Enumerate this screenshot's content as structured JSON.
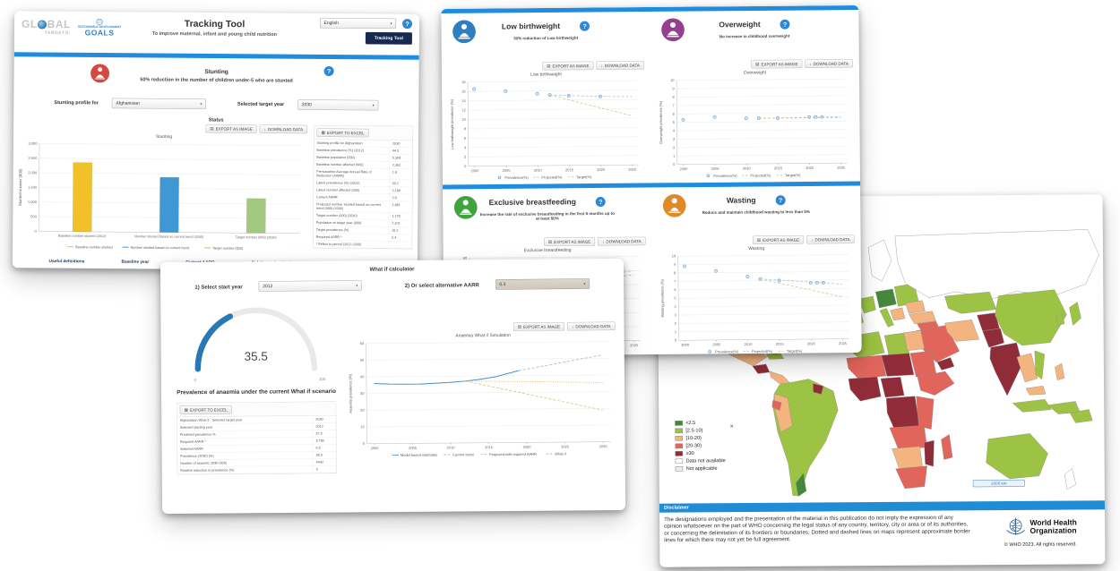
{
  "icons": {
    "help": "?",
    "image": "▤",
    "download": "↓",
    "excel": "▦",
    "caret": "▾"
  },
  "tracking_tool": {
    "logo": {
      "global_left": "GL",
      "global_right": "BAL",
      "targets": "TARGETS:",
      "sdg_line1": "SUSTAINABLE DEVELOPMENT",
      "sdg_goals": "GOALS"
    },
    "title": "Tracking Tool",
    "subtitle": "To improve maternal, infant and young child nutrition",
    "language_select": "English",
    "nav_button": "Tracking Tool",
    "section_title": "Stunting",
    "section_subtitle": "50% reduction in the number of children under-5 who are stunted",
    "profile_label": "Stunting profile for",
    "profile_value": "Afghanistan",
    "target_year_label": "Selected target year",
    "target_year_value": "2030",
    "status_label": "Status",
    "export_image_btn": "EXPORT AS IMAGE",
    "download_data_btn": "DOWNLOAD DATA",
    "export_excel_btn": "EXPORT TO EXCEL",
    "table_rows": [
      {
        "label": "Stunting profile for Afghanistan",
        "value": "2030"
      },
      {
        "label": "Baseline prevalence (%) (2012)",
        "value": "44.0"
      },
      {
        "label": "Baseline population (000)",
        "value": "5,309"
      },
      {
        "label": "Baseline number affected (000)",
        "value": "2,362"
      },
      {
        "label": "Pre-baseline Average Annual Rate of Reduction (AARR)",
        "value": "1.8"
      },
      {
        "label": "Latest prevalence (%) (2022)",
        "value": "33.1"
      },
      {
        "label": "Latest number affected (000)",
        "value": "2,188"
      },
      {
        "label": "Current AARR",
        "value": "2.9"
      },
      {
        "label": "Projected number stunted based on current trend (000) (2030)",
        "value": "1,881"
      },
      {
        "label": "Target number (000) (2030)",
        "value": "1,178"
      },
      {
        "label": "Population at target year (000)",
        "value": "7,201"
      },
      {
        "label": "Target prevalence (%)",
        "value": "16.2"
      },
      {
        "label": "Required AARR *",
        "value": "5.4"
      },
      {
        "label": "* Refers to period (2012-2030)",
        "value": ""
      }
    ],
    "footer_links": [
      "Useful definitions",
      "Baseline year",
      "Current AARR",
      "Relative reduction in numbers",
      "Required AARR"
    ]
  },
  "indicators": {
    "export_image_btn": "EXPORT AS IMAGE",
    "download_data_btn": "DOWNLOAD DATA",
    "low_birthweight": {
      "title": "Low birthweight",
      "subtitle": "30% reduction of Low birthweight"
    },
    "overweight": {
      "title": "Overweight",
      "subtitle": "No increase in childhood overweight"
    },
    "exclusive_breastfeeding": {
      "title": "Exclusive breastfeeding",
      "subtitle": "Increase the rate of exclusive breastfeeding in the first 6 months up to at least 50%"
    },
    "wasting": {
      "title": "Wasting",
      "subtitle": "Reduce and maintain childhood wasting to less than 5%"
    }
  },
  "whatif": {
    "title": "What if calculator",
    "start_year_label": "1) Select start year",
    "start_year_value": "2012",
    "aarr_label": "2) Or select alternative AARR",
    "aarr_value": "0.3",
    "gauge_value": "35.5",
    "gauge_min": "0",
    "gauge_max": "100",
    "gauge_caption": "Prevalence of anaemia under the current What if scenario",
    "export_excel_btn": "EXPORT TO EXCEL",
    "export_image_btn": "EXPORT AS IMAGE",
    "download_data_btn": "DOWNLOAD DATA",
    "table_rows": [
      {
        "label": "Afghanistan What if - Selected target year",
        "value": "2030"
      },
      {
        "label": "Selected starting year",
        "value": "2012"
      },
      {
        "label": "Predicted prevalence %",
        "value": "37.5"
      },
      {
        "label": "Required AARR *",
        "value": "3.780"
      },
      {
        "label": "Selected AARR",
        "value": "0.3"
      },
      {
        "label": "Prevalence (2030) (%)",
        "value": "35.5"
      },
      {
        "label": "Number of anaemic 2030 (000)",
        "value": "4442"
      },
      {
        "label": "Relative reduction in prevalence (%)",
        "value": "5"
      }
    ]
  },
  "map_panel": {
    "legend": [
      {
        "label": "<2.5",
        "color": "#45883c"
      },
      {
        "label": "[2.5-10)",
        "color": "#9cc343"
      },
      {
        "label": "[10-20)",
        "color": "#f4b47f"
      },
      {
        "label": "[20-30)",
        "color": "#e2655c"
      },
      {
        "label": "≥30",
        "color": "#8f2c38"
      },
      {
        "label": "Data not available",
        "color": "#ffffff"
      },
      {
        "label": "Not applicable",
        "color": "#ececec"
      }
    ],
    "marker": "✕",
    "scale_label": "2000 km",
    "disclaimer_title": "Disclaimer",
    "disclaimer_text": "The designations employed and the presentation of the material in this publication do not imply the expression of any opinion whatsoever on the part of WHO concerning the legal status of any country, territory, city or area or of its authorities, or concerning the delimitation of its frontiers or boundaries. Dotted and dashed lines on maps represent approximate border lines for which there may not yet be full agreement.",
    "who_name_line1": "World Health",
    "who_name_line2": "Organization",
    "copyright": "© WHO 2023. All rights reserved."
  },
  "chart_data": [
    {
      "id": "stunting",
      "type": "bar",
      "title": "Stunting",
      "ylabel": "Stunted number (000)",
      "ylim": [
        0,
        3000
      ],
      "ytick_step": 500,
      "categories": [
        "Baseline number stunted (2012)",
        "Number stunted based on current trend (2030)",
        "Target number (000) (2030)"
      ],
      "values": [
        2362,
        1881,
        1178
      ],
      "colors": [
        "#f2c029",
        "#3f97d4",
        "#a3c980"
      ],
      "legend": [
        "Baseline number stunted",
        "Number stunted based on current trend",
        "Target number (000)"
      ]
    },
    {
      "id": "lbw",
      "type": "scatter",
      "title": "Low birthweight",
      "ylabel": "Low birthweight prevalence (%)",
      "ylim": [
        0,
        18
      ],
      "ytick_step": 2,
      "xlim": [
        1999,
        2026
      ],
      "xticks": [
        2000,
        2005,
        2010,
        2015,
        2020,
        2025
      ],
      "series": [
        {
          "name": "Prevalence(%)",
          "style": "points",
          "color": "#6ba3d6",
          "points": [
            [
              2000,
              16.5
            ],
            [
              2005,
              16.0
            ],
            [
              2010,
              15.4
            ],
            [
              2012,
              15.1
            ],
            [
              2015,
              14.9
            ],
            [
              2020,
              14.7
            ]
          ]
        },
        {
          "name": "Projected(%)",
          "style": "dash",
          "color": "#9dc3e6",
          "points": [
            [
              2012,
              15.1
            ],
            [
              2016,
              14.9
            ],
            [
              2020,
              14.7
            ],
            [
              2025,
              14.6
            ]
          ]
        },
        {
          "name": "Target(%)",
          "style": "dash",
          "color": "#d2c386",
          "points": [
            [
              2012,
              15.1
            ],
            [
              2025,
              10.5
            ]
          ]
        }
      ],
      "legend": [
        "Prevalence(%)",
        "Projected(%)",
        "Target(%)"
      ]
    },
    {
      "id": "ow",
      "type": "scatter",
      "title": "Overweight",
      "ylabel": "Overweight prevalence (%)",
      "ylim": [
        0,
        10
      ],
      "ytick_step": 1,
      "xlim": [
        1999,
        2026
      ],
      "xticks": [
        2000,
        2005,
        2010,
        2015,
        2020,
        2025
      ],
      "series": [
        {
          "name": "Prevalence(%)",
          "style": "points",
          "color": "#6ba3d6",
          "points": [
            [
              2000,
              5.3
            ],
            [
              2005,
              5.6
            ],
            [
              2010,
              5.4
            ],
            [
              2012,
              5.4
            ],
            [
              2015,
              5.4
            ],
            [
              2020,
              5.5
            ],
            [
              2021,
              5.5
            ],
            [
              2022,
              5.5
            ]
          ]
        },
        {
          "name": "Projected(%)",
          "style": "dash",
          "color": "#9dc3e6",
          "points": [
            [
              2012,
              5.4
            ],
            [
              2025,
              5.5
            ]
          ]
        },
        {
          "name": "Target(%)",
          "style": "dash",
          "color": "#d2c386",
          "points": [
            [
              2012,
              5.4
            ],
            [
              2025,
              5.4
            ]
          ]
        }
      ],
      "legend": [
        "Prevalence(%)",
        "Projected(%)",
        "Target(%)"
      ]
    },
    {
      "id": "ebf",
      "type": "scatter",
      "title": "Exclusive breastfeeding",
      "ylabel": "Exclusive breastfeeding (%)",
      "ylim": [
        0,
        60
      ],
      "ytick_step": 10,
      "xlim": [
        1999,
        2026
      ],
      "xticks": [
        2000,
        2005,
        2010,
        2015,
        2020,
        2025
      ],
      "series": [
        {
          "name": "Prevalence(%)",
          "style": "points",
          "color": "#6ba3d6",
          "points": [
            [
              2000,
              29
            ],
            [
              2005,
              35
            ],
            [
              2010,
              40
            ],
            [
              2015,
              43
            ],
            [
              2022,
              45
            ]
          ]
        },
        {
          "name": "Projected(%)",
          "style": "dash",
          "color": "#9dc3e6",
          "points": [
            [
              2015,
              43
            ],
            [
              2025,
              47
            ]
          ]
        },
        {
          "name": "Target(%)",
          "style": "dash",
          "color": "#d2c386",
          "points": [
            [
              2015,
              43
            ],
            [
              2025,
              50
            ]
          ]
        }
      ],
      "legend": [
        "Prevalence(%)",
        "Projected(%)",
        "Target(%)"
      ]
    },
    {
      "id": "wasting",
      "type": "scatter",
      "title": "Wasting",
      "ylabel": "Wasting prevalence (%)",
      "ylim": [
        0,
        10
      ],
      "ytick_step": 1,
      "xlim": [
        1999,
        2026
      ],
      "xticks": [
        2000,
        2005,
        2010,
        2015,
        2020,
        2025
      ],
      "series": [
        {
          "name": "Prevalence(%)",
          "style": "points",
          "color": "#6ba3d6",
          "points": [
            [
              2000,
              8.8
            ],
            [
              2005,
              8.2
            ],
            [
              2010,
              7.5
            ],
            [
              2012,
              7.2
            ],
            [
              2015,
              7.0
            ],
            [
              2020,
              6.7
            ],
            [
              2021,
              6.7
            ],
            [
              2022,
              6.7
            ]
          ]
        },
        {
          "name": "Projected(%)",
          "style": "dash",
          "color": "#9dc3e6",
          "points": [
            [
              2012,
              7.2
            ],
            [
              2022,
              6.7
            ],
            [
              2025,
              6.5
            ]
          ]
        },
        {
          "name": "Target(%)",
          "style": "dash",
          "color": "#d2c386",
          "points": [
            [
              2012,
              7.2
            ],
            [
              2025,
              5.0
            ]
          ]
        }
      ],
      "legend": [
        "Prevalence(%)",
        "Projected(%)",
        "Target(%)"
      ]
    },
    {
      "id": "anaemia",
      "type": "scatter",
      "title": "Anaemia What if Simulation",
      "ylabel": "Anaemia prevalence (%)",
      "ylim": [
        0,
        60
      ],
      "ytick_step": 10,
      "xlim": [
        1999,
        2031
      ],
      "xticks": [
        2000,
        2005,
        2010,
        2015,
        2020,
        2025,
        2030
      ],
      "series": [
        {
          "name": "Model based estimates",
          "style": "line",
          "color": "#4a90c8",
          "points": [
            [
              2000,
              36
            ],
            [
              2002,
              35.6
            ],
            [
              2004,
              35.4
            ],
            [
              2006,
              35.4
            ],
            [
              2008,
              35.8
            ],
            [
              2010,
              36.3
            ],
            [
              2012,
              37
            ],
            [
              2014,
              38
            ],
            [
              2016,
              39.5
            ],
            [
              2019,
              43
            ]
          ]
        },
        {
          "name": "Current trend",
          "style": "dash",
          "color": "#ababab",
          "points": [
            [
              2019,
              43
            ],
            [
              2030,
              52
            ]
          ]
        },
        {
          "name": "Projected with required AARR",
          "style": "dash",
          "color": "#cfc07a",
          "points": [
            [
              2012,
              37
            ],
            [
              2030,
              19
            ]
          ]
        },
        {
          "name": "What if",
          "style": "dot",
          "color": "#e2a33d",
          "points": [
            [
              2012,
              37
            ],
            [
              2020,
              36.4
            ],
            [
              2030,
              35.5
            ]
          ]
        }
      ],
      "legend": [
        "Model based estimates",
        "Current trend",
        "Projected with required AARR",
        "What if"
      ]
    },
    {
      "id": "anaemia_gauge",
      "type": "gauge",
      "value": 35.5,
      "min": 0,
      "max": 100,
      "color": "#2679b5",
      "track": "#e9e9e9"
    }
  ]
}
